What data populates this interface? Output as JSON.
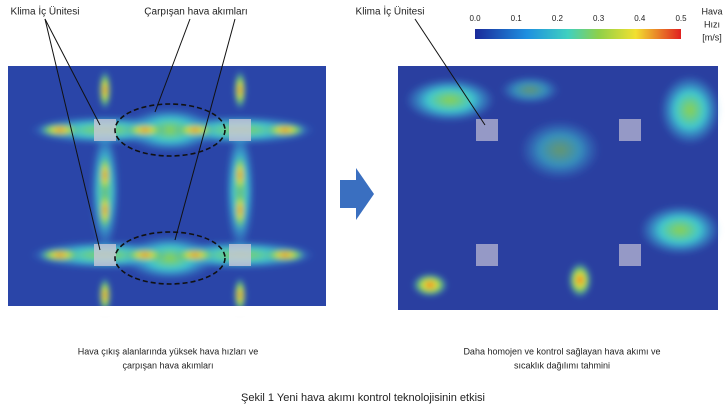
{
  "labels": {
    "left_unit": "Klima İç Ünitesi",
    "collision": "Çarpışan hava akımları",
    "right_unit": "Klima İç Ünitesi"
  },
  "colorbar": {
    "title_lines": [
      "Hava",
      "Hızı",
      "[m/s]"
    ],
    "lim": [
      0,
      0.5
    ],
    "ticks": [
      {
        "value": 0,
        "label": "0.0"
      },
      {
        "value": 0.1,
        "label": "0.1"
      },
      {
        "value": 0.2,
        "label": "0.2"
      },
      {
        "value": 0.3,
        "label": "0.3"
      },
      {
        "value": 0.4,
        "label": "0.4"
      },
      {
        "value": 0.5,
        "label": "0.5"
      }
    ]
  },
  "captions": {
    "left": [
      "Hava çıkış alanlarında yüksek hava hızları ve",
      "çarpışan hava akımları"
    ],
    "right": [
      "Daha homojen ve kontrol sağlayan hava akımı ve",
      "sıcaklık dağılımı tahmini"
    ]
  },
  "figure_caption": "Şekil 1 Yeni hava akımı kontrol teknolojisinin etkisi"
}
